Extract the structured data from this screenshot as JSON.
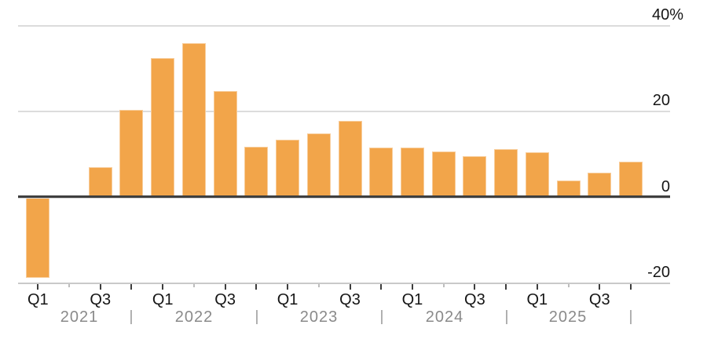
{
  "chart_data": {
    "type": "bar",
    "title": "",
    "unit": "%",
    "categories": [
      "Q1 2021",
      "Q2 2021",
      "Q3 2021",
      "Q4 2021",
      "Q1 2022",
      "Q2 2022",
      "Q3 2022",
      "Q4 2022",
      "Q1 2023",
      "Q2 2023",
      "Q3 2023",
      "Q4 2023",
      "Q1 2024",
      "Q2 2024",
      "Q3 2024",
      "Q4 2024",
      "Q1 2025",
      "Q2 2025",
      "Q3 2025",
      "Q4 2025"
    ],
    "values": [
      -18.8,
      0,
      7.0,
      20.4,
      32.5,
      35.9,
      24.8,
      11.8,
      13.4,
      14.9,
      17.9,
      11.6,
      11.6,
      10.7,
      9.7,
      11.2,
      10.6,
      3.9,
      5.7,
      8.3
    ],
    "bar_color": "#F2A54A",
    "grid": true,
    "legend": null,
    "xlabel": "",
    "ylabel": "",
    "ylim": [
      -20,
      40
    ],
    "y_axis": {
      "ticks": [
        {
          "value": 40,
          "label": "40%"
        },
        {
          "value": 20,
          "label": "20"
        },
        {
          "value": 0,
          "label": "0"
        },
        {
          "value": -20,
          "label": "-20"
        }
      ]
    },
    "x_axis": {
      "quarter_tick_labels": [
        "Q1",
        "Q3",
        "Q1",
        "Q3",
        "Q1",
        "Q3",
        "Q1",
        "Q3",
        "Q1",
        "Q3"
      ],
      "year_labels": [
        "2021",
        "2022",
        "2023",
        "2024",
        "2025"
      ],
      "year_separator": "|"
    },
    "colors": {
      "gridline": "#DCDCDC",
      "zero_line": "#3F3F3F",
      "axis_line": "#C9C9C9",
      "tick_dark": "#3D3D3D",
      "tick_light": "#BDBDBD",
      "label_dark": "#161616",
      "label_gray": "#8A8A8A"
    }
  }
}
